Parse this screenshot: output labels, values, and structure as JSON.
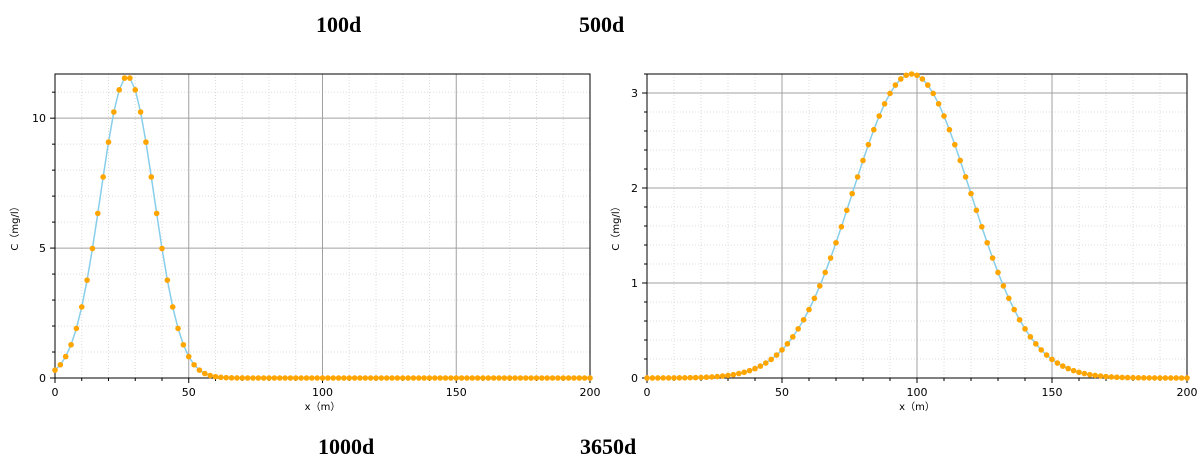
{
  "captions": {
    "top_left": "100d",
    "top_right": "500d",
    "bottom_left": "1000d",
    "bottom_right": "3650d"
  },
  "colors": {
    "marker": "#FFA500",
    "line": "#87CEEB",
    "major_grid": "#A0A0A0",
    "minor_grid": "#DCDCDC",
    "axis": "#000000"
  },
  "chart_data": [
    {
      "type": "line",
      "title": "",
      "xlabel": "x（m）",
      "ylabel": "C（mg/l）",
      "xlim": [
        0,
        200
      ],
      "ylim": [
        0,
        11.7
      ],
      "xticks": [
        0,
        50,
        100,
        150,
        200
      ],
      "yticks": [
        0,
        5,
        10
      ],
      "grid": true,
      "series": [
        {
          "model": "gaussian",
          "peak_x": 27,
          "peak_y": 11.6,
          "sigma": 10,
          "x_start": 0,
          "x_end": 200,
          "x_step": 2,
          "marker": "circle",
          "connect_line": true
        }
      ]
    },
    {
      "type": "line",
      "title": "",
      "xlabel": "x（m）",
      "ylabel": "C（mg/l）",
      "xlim": [
        0,
        200
      ],
      "ylim": [
        0,
        3.2
      ],
      "xticks": [
        0,
        50,
        100,
        150,
        200
      ],
      "yticks": [
        0,
        1,
        2,
        3
      ],
      "grid": true,
      "series": [
        {
          "model": "gaussian",
          "peak_x": 98,
          "peak_y": 3.2,
          "sigma": 22,
          "x_start": 0,
          "x_end": 200,
          "x_step": 2,
          "marker": "circle",
          "connect_line": true
        }
      ]
    }
  ]
}
